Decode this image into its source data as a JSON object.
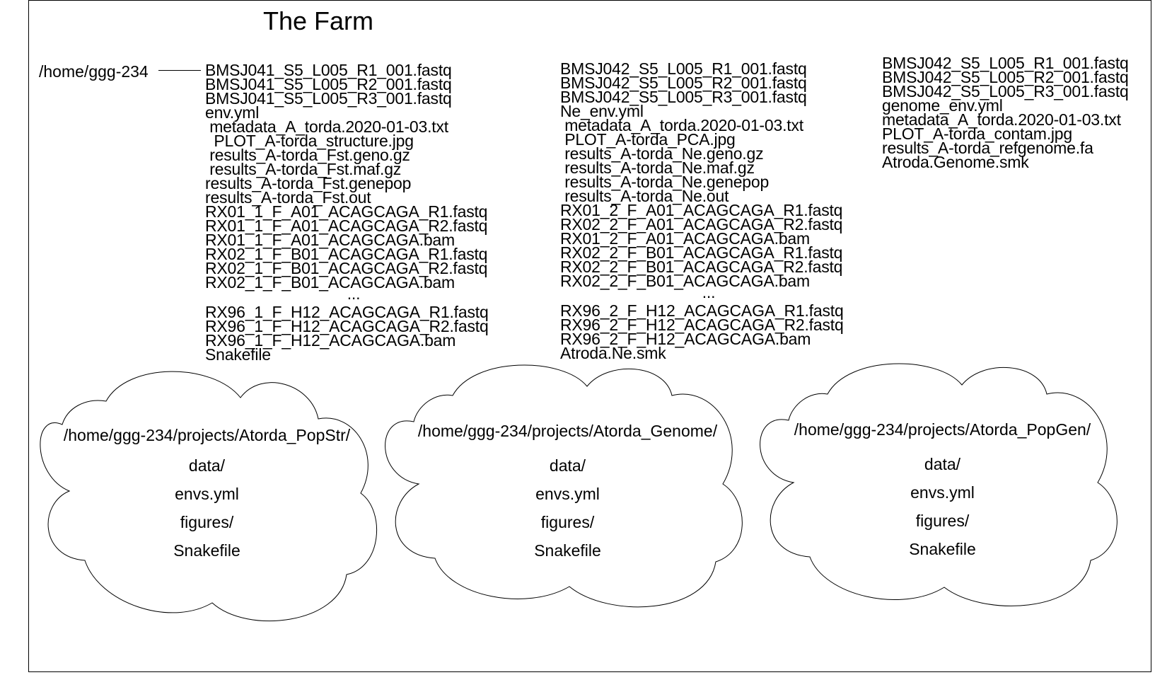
{
  "title": "The Farm",
  "root": "/home/ggg-234",
  "columns": [
    {
      "files": [
        "BMSJ041_S5_L005_R1_001.fastq",
        "BMSJ041_S5_L005_R2_001.fastq",
        "BMSJ041_S5_L005_R3_001.fastq",
        "env.yml",
        " metadata_A_torda.2020-01-03.txt",
        "  PLOT_A-torda_structure.jpg",
        " results_A-torda_Fst.geno.gz",
        " results_A-torda_Fst.maf.gz",
        "results_A-torda_Fst.genepop",
        "results_A-torda_Fst.out",
        "RX01_1_F_A01_ACAGCAGA_R1.fastq",
        "RX01_1_F_A01_ACAGCAGA_R2.fastq",
        "RX01_1_F_A01_ACAGCAGA.bam",
        "RX02_1_F_B01_ACAGCAGA_R1.fastq",
        "RX02_1_F_B01_ACAGCAGA_R2.fastq",
        "RX02_1_F_B01_ACAGCAGA.bam",
        "...",
        "RX96_1_F_H12_ACAGCAGA_R1.fastq",
        "RX96_1_F_H12_ACAGCAGA_R2.fastq",
        "RX96_1_F_H12_ACAGCAGA.bam",
        "Snakefile"
      ]
    },
    {
      "files": [
        "BMSJ042_S5_L005_R1_001.fastq",
        "BMSJ042_S5_L005_R2_001.fastq",
        "BMSJ042_S5_L005_R3_001.fastq",
        "Ne_env.yml",
        " metadata_A_torda.2020-01-03.txt",
        " PLOT_A-torda_PCA.jpg",
        " results_A-torda_Ne.geno.gz",
        " results_A-torda_Ne.maf.gz",
        " results_A-torda_Ne.genepop",
        " results_A-torda_Ne.out",
        "RX01_2_F_A01_ACAGCAGA_R1.fastq",
        "RX02_2_F_A01_ACAGCAGA_R2.fastq",
        "RX01_2_F_A01_ACAGCAGA.bam",
        "RX02_2_F_B01_ACAGCAGA_R1.fastq",
        "RX02_2_F_B01_ACAGCAGA_R2.fastq",
        "RX02_2_F_B01_ACAGCAGA.bam",
        "...",
        "RX96_2_F_H12_ACAGCAGA_R1.fastq",
        "RX96_2_F_H12_ACAGCAGA_R2.fastq",
        "RX96_2_F_H12_ACAGCAGA.bam",
        "Atroda.Ne.smk"
      ]
    },
    {
      "files": [
        "BMSJ042_S5_L005_R1_001.fastq",
        "BMSJ042_S5_L005_R2_001.fastq",
        "BMSJ042_S5_L005_R3_001.fastq",
        "genome_env.yml",
        "metadata_A_torda.2020-01-03.txt",
        "PLOT_A-torda_contam.jpg",
        "results_A-torda_refgenome.fa",
        "Atroda.Genome.smk"
      ]
    }
  ],
  "clouds": [
    {
      "path": "/home/ggg-234/projects/Atorda_PopStr/",
      "items": [
        "data/",
        "envs.yml",
        "figures/",
        "Snakefile"
      ]
    },
    {
      "path": "/home/ggg-234/projects/Atorda_Genome/",
      "items": [
        "data/",
        "envs.yml",
        "figures/",
        "Snakefile"
      ]
    },
    {
      "path": "/home/ggg-234/projects/Atorda_PopGen/",
      "items": [
        "data/",
        "envs.yml",
        "figures/",
        "Snakefile"
      ]
    }
  ]
}
